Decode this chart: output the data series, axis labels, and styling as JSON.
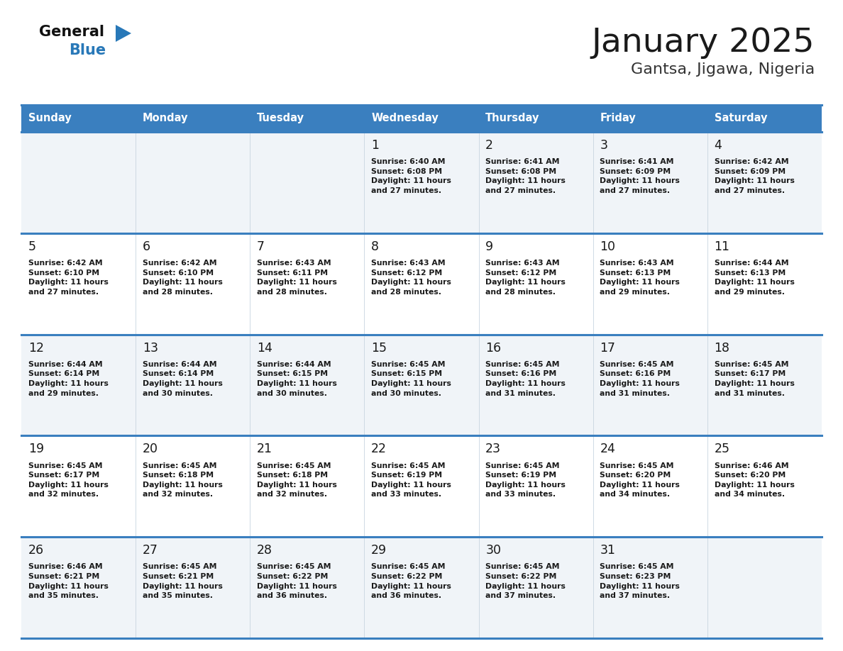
{
  "title": "January 2025",
  "subtitle": "Gantsa, Jigawa, Nigeria",
  "days_of_week": [
    "Sunday",
    "Monday",
    "Tuesday",
    "Wednesday",
    "Thursday",
    "Friday",
    "Saturday"
  ],
  "header_bg": "#3a7fbf",
  "header_text": "#ffffff",
  "row_bg_light": "#f0f4f8",
  "row_bg_white": "#ffffff",
  "separator_color": "#3a7fbf",
  "title_color": "#1a1a1a",
  "subtitle_color": "#333333",
  "cell_text_color": "#1a1a1a",
  "day_num_color": "#1a1a1a",
  "logo_general_color": "#111111",
  "logo_blue_color": "#2878b8",
  "calendar_data": [
    [
      "",
      "",
      "",
      "1\nSunrise: 6:40 AM\nSunset: 6:08 PM\nDaylight: 11 hours\nand 27 minutes.",
      "2\nSunrise: 6:41 AM\nSunset: 6:08 PM\nDaylight: 11 hours\nand 27 minutes.",
      "3\nSunrise: 6:41 AM\nSunset: 6:09 PM\nDaylight: 11 hours\nand 27 minutes.",
      "4\nSunrise: 6:42 AM\nSunset: 6:09 PM\nDaylight: 11 hours\nand 27 minutes."
    ],
    [
      "5\nSunrise: 6:42 AM\nSunset: 6:10 PM\nDaylight: 11 hours\nand 27 minutes.",
      "6\nSunrise: 6:42 AM\nSunset: 6:10 PM\nDaylight: 11 hours\nand 28 minutes.",
      "7\nSunrise: 6:43 AM\nSunset: 6:11 PM\nDaylight: 11 hours\nand 28 minutes.",
      "8\nSunrise: 6:43 AM\nSunset: 6:12 PM\nDaylight: 11 hours\nand 28 minutes.",
      "9\nSunrise: 6:43 AM\nSunset: 6:12 PM\nDaylight: 11 hours\nand 28 minutes.",
      "10\nSunrise: 6:43 AM\nSunset: 6:13 PM\nDaylight: 11 hours\nand 29 minutes.",
      "11\nSunrise: 6:44 AM\nSunset: 6:13 PM\nDaylight: 11 hours\nand 29 minutes."
    ],
    [
      "12\nSunrise: 6:44 AM\nSunset: 6:14 PM\nDaylight: 11 hours\nand 29 minutes.",
      "13\nSunrise: 6:44 AM\nSunset: 6:14 PM\nDaylight: 11 hours\nand 30 minutes.",
      "14\nSunrise: 6:44 AM\nSunset: 6:15 PM\nDaylight: 11 hours\nand 30 minutes.",
      "15\nSunrise: 6:45 AM\nSunset: 6:15 PM\nDaylight: 11 hours\nand 30 minutes.",
      "16\nSunrise: 6:45 AM\nSunset: 6:16 PM\nDaylight: 11 hours\nand 31 minutes.",
      "17\nSunrise: 6:45 AM\nSunset: 6:16 PM\nDaylight: 11 hours\nand 31 minutes.",
      "18\nSunrise: 6:45 AM\nSunset: 6:17 PM\nDaylight: 11 hours\nand 31 minutes."
    ],
    [
      "19\nSunrise: 6:45 AM\nSunset: 6:17 PM\nDaylight: 11 hours\nand 32 minutes.",
      "20\nSunrise: 6:45 AM\nSunset: 6:18 PM\nDaylight: 11 hours\nand 32 minutes.",
      "21\nSunrise: 6:45 AM\nSunset: 6:18 PM\nDaylight: 11 hours\nand 32 minutes.",
      "22\nSunrise: 6:45 AM\nSunset: 6:19 PM\nDaylight: 11 hours\nand 33 minutes.",
      "23\nSunrise: 6:45 AM\nSunset: 6:19 PM\nDaylight: 11 hours\nand 33 minutes.",
      "24\nSunrise: 6:45 AM\nSunset: 6:20 PM\nDaylight: 11 hours\nand 34 minutes.",
      "25\nSunrise: 6:46 AM\nSunset: 6:20 PM\nDaylight: 11 hours\nand 34 minutes."
    ],
    [
      "26\nSunrise: 6:46 AM\nSunset: 6:21 PM\nDaylight: 11 hours\nand 35 minutes.",
      "27\nSunrise: 6:45 AM\nSunset: 6:21 PM\nDaylight: 11 hours\nand 35 minutes.",
      "28\nSunrise: 6:45 AM\nSunset: 6:22 PM\nDaylight: 11 hours\nand 36 minutes.",
      "29\nSunrise: 6:45 AM\nSunset: 6:22 PM\nDaylight: 11 hours\nand 36 minutes.",
      "30\nSunrise: 6:45 AM\nSunset: 6:22 PM\nDaylight: 11 hours\nand 37 minutes.",
      "31\nSunrise: 6:45 AM\nSunset: 6:23 PM\nDaylight: 11 hours\nand 37 minutes.",
      ""
    ]
  ],
  "fig_width": 11.88,
  "fig_height": 9.18,
  "dpi": 100
}
